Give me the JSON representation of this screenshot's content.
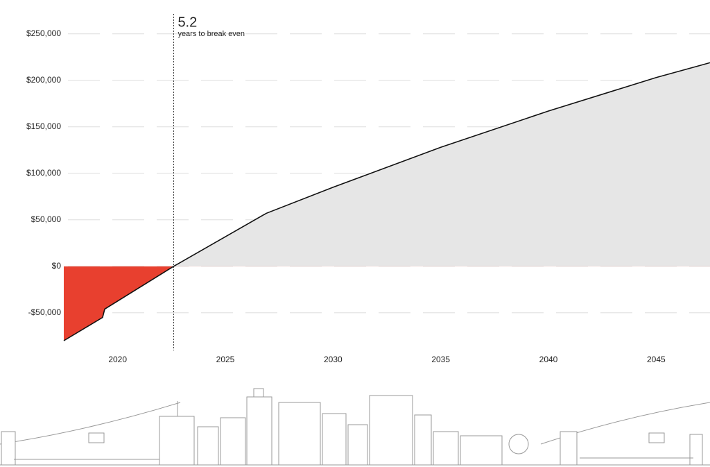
{
  "chart_data": {
    "type": "area",
    "annotation": {
      "value": "5.2",
      "text": "years to break even",
      "x": 2022.6
    },
    "x": [
      2017.5,
      2019.3,
      2019.4,
      2022.6,
      2026.9,
      2030,
      2035,
      2040,
      2045,
      2047.5
    ],
    "values": [
      -80000,
      -55000,
      -46000,
      0,
      57000,
      85000,
      128000,
      167000,
      203000,
      219000
    ],
    "color": "#e8402f",
    "positive_color": "#e6e6e6",
    "line_color": "#111",
    "xlim": [
      2017.5,
      2047.5
    ],
    "xticks": [
      2020,
      2025,
      2030,
      2035,
      2040,
      2045
    ],
    "ylim": [
      -80000,
      270000
    ],
    "yticks": [
      {
        "value": -50000,
        "label": "-$50,000"
      },
      {
        "value": 0,
        "label": "$0"
      },
      {
        "value": 50000,
        "label": "$50,000"
      },
      {
        "value": 100000,
        "label": "$100,000"
      },
      {
        "value": 150000,
        "label": "$150,000"
      },
      {
        "value": 200000,
        "label": "$200,000"
      },
      {
        "value": 250000,
        "label": "$250,000"
      }
    ],
    "grid": true
  }
}
